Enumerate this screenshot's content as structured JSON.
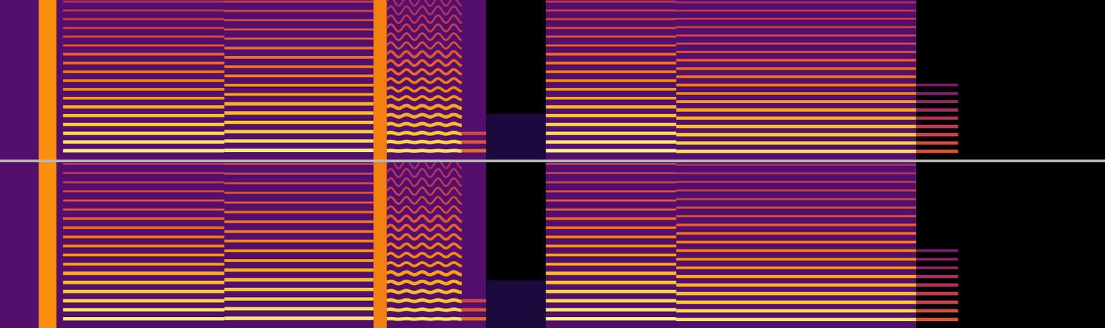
{
  "chart_data": {
    "type": "spectrogram",
    "xlim": [
      0,
      10
    ],
    "ylim": [
      0,
      8000
    ],
    "zlim": [
      -90,
      0
    ],
    "tick_labels": false,
    "series": [
      {
        "noise": [
          {
            "start": 0,
            "end": 4.4,
            "fmax": 8000,
            "level": -68
          },
          {
            "start": 4.4,
            "end": 4.94,
            "fmax": 2300,
            "level": -80
          },
          {
            "start": 4.94,
            "end": 8.29,
            "fmax": 8000,
            "level": -68
          }
        ],
        "bursts": [
          {
            "start": 0.35,
            "end": 0.51,
            "level": -22
          },
          {
            "start": 3.38,
            "end": 3.5,
            "level": -25
          }
        ],
        "notes": [
          {
            "start": 0.57,
            "end": 2.03,
            "f0": 440,
            "harmonics": 18,
            "level": -3,
            "rolloff": 2.6
          },
          {
            "start": 2.03,
            "end": 3.38,
            "f0": 466,
            "harmonics": 17,
            "level": -4,
            "rolloff": 2.4
          },
          {
            "start": 3.5,
            "end": 4.18,
            "f0": 440,
            "harmonics": 18,
            "level": -6,
            "rolloff": 2.6,
            "vibrato_depth": 12,
            "vibrato_rate": 7
          },
          {
            "start": 4.18,
            "end": 4.4,
            "f0": 440,
            "harmonics": 3,
            "level": -30,
            "rolloff": 5
          },
          {
            "start": 4.94,
            "end": 6.12,
            "f0": 440,
            "harmonics": 18,
            "level": -2,
            "rolloff": 2.5
          },
          {
            "start": 6.12,
            "end": 8.29,
            "f0": 415,
            "harmonics": 19,
            "level": -6,
            "rolloff": 2.4
          },
          {
            "start": 8.29,
            "end": 8.67,
            "f0": 415,
            "harmonics": 9,
            "level": -35,
            "rolloff": 3
          }
        ]
      },
      {
        "noise": [
          {
            "start": 0,
            "end": 4.4,
            "fmax": 8000,
            "level": -68
          },
          {
            "start": 4.4,
            "end": 4.94,
            "fmax": 2300,
            "level": -80
          },
          {
            "start": 4.94,
            "end": 8.29,
            "fmax": 8000,
            "level": -68
          }
        ],
        "bursts": [
          {
            "start": 0.35,
            "end": 0.51,
            "level": -22
          },
          {
            "start": 3.38,
            "end": 3.5,
            "level": -25
          }
        ],
        "notes": [
          {
            "start": 0.57,
            "end": 2.03,
            "f0": 440,
            "harmonics": 18,
            "level": -3,
            "rolloff": 2.6
          },
          {
            "start": 2.03,
            "end": 3.38,
            "f0": 466,
            "harmonics": 17,
            "level": -4,
            "rolloff": 2.4
          },
          {
            "start": 3.5,
            "end": 4.18,
            "f0": 440,
            "harmonics": 18,
            "level": -6,
            "rolloff": 2.6,
            "vibrato_depth": 12,
            "vibrato_rate": 7
          },
          {
            "start": 4.18,
            "end": 4.4,
            "f0": 440,
            "harmonics": 3,
            "level": -30,
            "rolloff": 5
          },
          {
            "start": 4.94,
            "end": 6.12,
            "f0": 440,
            "harmonics": 18,
            "level": -2,
            "rolloff": 2.5
          },
          {
            "start": 6.12,
            "end": 8.29,
            "f0": 415,
            "harmonics": 19,
            "level": -6,
            "rolloff": 2.4
          },
          {
            "start": 8.29,
            "end": 8.67,
            "f0": 415,
            "harmonics": 9,
            "level": -35,
            "rolloff": 3
          }
        ]
      }
    ]
  }
}
